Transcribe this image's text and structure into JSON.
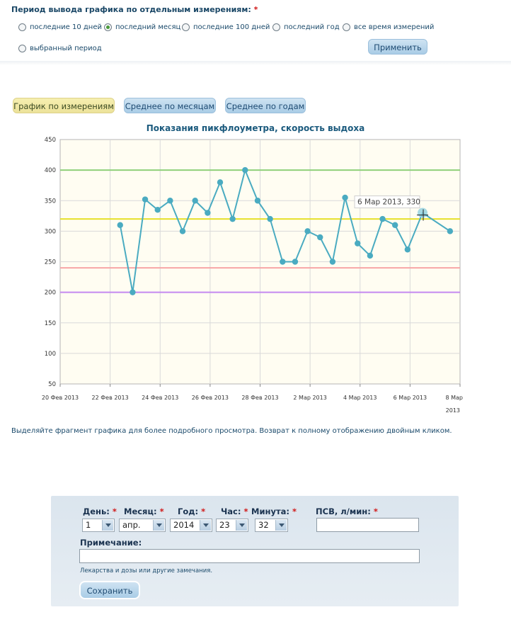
{
  "period": {
    "title": "Период вывода графика по отдельным измерениям:",
    "required_mark": "*",
    "options": [
      {
        "label": "последние 10 дней",
        "selected": false
      },
      {
        "label": "последний месяц",
        "selected": true
      },
      {
        "label": "последние 100 дней",
        "selected": false
      },
      {
        "label": "последний год",
        "selected": false
      },
      {
        "label": "все время измерений",
        "selected": false
      },
      {
        "label": "выбранный период",
        "selected": false
      }
    ],
    "apply_label": "Применить"
  },
  "tabs": [
    {
      "label": "График по измерениям",
      "active": true
    },
    {
      "label": "Среднее по месяцам",
      "active": false
    },
    {
      "label": "Среднее по годам",
      "active": false
    }
  ],
  "chart_data": {
    "type": "line",
    "title": "Показания пикфлоуметра, скорость выдоха",
    "ylim": [
      50,
      450
    ],
    "yticks": [
      "450",
      "400",
      "350",
      "300",
      "250",
      "200",
      "150",
      "100",
      "50"
    ],
    "xticks": [
      "20 Фев 2013",
      "22 Фев 2013",
      "24 Фев 2013",
      "26 Фев 2013",
      "28 Фев 2013",
      "2 Мар 2013",
      "4 Мар 2013",
      "6 Мар 2013",
      "8 Мар",
      "2013"
    ],
    "xlim_days": [
      0,
      16
    ],
    "zones": [
      {
        "value": 400,
        "color": "#8fd07a"
      },
      {
        "value": 320,
        "color": "#e6e02a"
      },
      {
        "value": 240,
        "color": "#f7a6a6"
      },
      {
        "value": 200,
        "color": "#c48af0"
      }
    ],
    "series": [
      {
        "color": "#4aabc1",
        "points": [
          [
            2.4,
            310
          ],
          [
            2.9,
            200
          ],
          [
            3.4,
            352
          ],
          [
            3.9,
            335
          ],
          [
            4.4,
            350
          ],
          [
            4.9,
            300
          ],
          [
            5.4,
            350
          ],
          [
            5.9,
            330
          ],
          [
            6.4,
            380
          ],
          [
            6.9,
            320
          ],
          [
            7.4,
            400
          ],
          [
            7.9,
            350
          ],
          [
            8.4,
            320
          ],
          [
            8.9,
            250
          ],
          [
            9.4,
            250
          ],
          [
            9.9,
            300
          ],
          [
            10.4,
            290
          ],
          [
            10.9,
            250
          ],
          [
            11.4,
            355
          ],
          [
            11.9,
            280
          ],
          [
            12.4,
            260
          ],
          [
            12.9,
            320
          ],
          [
            13.4,
            310
          ],
          [
            13.9,
            270
          ],
          [
            14.5,
            330
          ],
          [
            15.6,
            300
          ]
        ]
      }
    ],
    "tooltip": {
      "text": "6 Мар 2013, 330",
      "point_index": 24
    }
  },
  "hint": "Выделяйте фрагмент графика для более подробного просмотра. Возврат к полному отображению двойным кликом.",
  "form": {
    "day_label": "День:",
    "month_label": "Месяц:",
    "year_label": "Год:",
    "hour_label": "Час:",
    "minute_label": "Минута:",
    "psv_label": "ПСВ, л/мин:",
    "required_mark": "*",
    "day_value": "1",
    "month_value": "апр.",
    "year_value": "2014",
    "hour_value": "23",
    "minute_value": "32",
    "psv_value": "",
    "note_label": "Примечание:",
    "note_value": "",
    "note_hint": "Лекарства и дозы или другие замечания.",
    "save_label": "Сохранить"
  }
}
